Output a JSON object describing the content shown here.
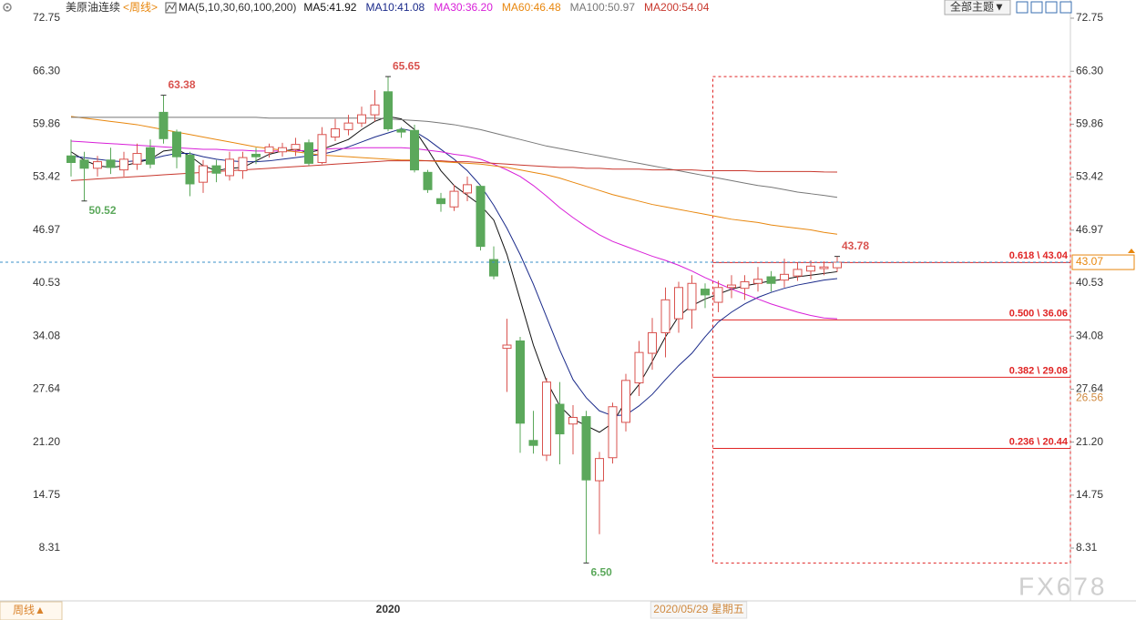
{
  "chart_data": {
    "type": "candlestick",
    "title": "美原油连续",
    "period_label": "<周线>",
    "ma_label": "MA(5,10,30,60,100,200)",
    "toolbar_button": "全部主题▼",
    "period_button": "周线▲",
    "crosshair_date": "2020/05/29 星期五",
    "watermark": "FX678",
    "categories": [
      null,
      null,
      null,
      null,
      null,
      null,
      null,
      null,
      null,
      null,
      null,
      null,
      null,
      null,
      null,
      null,
      null,
      null,
      null,
      null,
      null,
      null,
      null,
      null,
      "2020",
      null,
      null,
      null,
      null,
      null,
      null,
      null,
      null,
      null,
      null,
      null,
      null,
      null,
      null,
      null,
      null,
      null,
      null,
      null,
      null,
      null,
      null,
      null,
      null,
      null,
      null,
      null,
      null,
      null,
      null,
      null,
      null,
      null,
      null
    ],
    "candles": {
      "open": [
        56.0,
        55.5,
        54.5,
        55.5,
        54.3,
        55.0,
        57.0,
        61.3,
        58.9,
        56.1,
        52.8,
        54.8,
        53.6,
        54.2,
        56.2,
        56.4,
        56.5,
        56.8,
        57.6,
        55.2,
        58.3,
        59.2,
        60.0,
        61.0,
        63.8,
        59.2,
        59.1,
        54.0,
        50.8,
        49.8,
        51.5,
        52.3,
        43.4,
        32.6,
        33.5,
        21.4,
        19.6,
        25.8,
        23.4,
        24.3,
        16.5,
        19.3,
        23.6,
        28.4,
        32.0,
        34.5,
        36.2,
        37.3,
        39.8,
        38.2,
        40.0,
        39.9,
        40.5,
        41.3,
        40.9,
        41.4,
        42.0,
        42.3,
        42.4
      ],
      "high": [
        58.0,
        56.5,
        56.0,
        57.0,
        56.5,
        57.5,
        58.0,
        63.38,
        59.2,
        56.5,
        55.5,
        55.5,
        56.5,
        56.5,
        57.0,
        57.5,
        57.6,
        58.2,
        58.0,
        59.5,
        60.5,
        61.0,
        62.0,
        64.0,
        65.65,
        59.5,
        59.8,
        54.3,
        51.5,
        52.5,
        53.5,
        52.5,
        45.0,
        36.2,
        34.0,
        25.0,
        29.0,
        28.5,
        25.7,
        25.0,
        20.0,
        26.0,
        29.5,
        33.5,
        36.3,
        40.0,
        40.7,
        41.5,
        40.5,
        40.8,
        41.5,
        41.5,
        42.5,
        42.0,
        43.5,
        43.0,
        43.3,
        43.2,
        43.78
      ],
      "low": [
        53.5,
        50.52,
        53.5,
        53.8,
        53.5,
        54.3,
        54.5,
        57.5,
        54.5,
        51.1,
        51.5,
        52.8,
        53.0,
        53.2,
        55.0,
        55.8,
        55.9,
        56.0,
        54.8,
        55.0,
        57.8,
        58.5,
        59.5,
        60.2,
        59.0,
        58.2,
        54.0,
        51.5,
        49.2,
        49.3,
        50.5,
        44.5,
        41.0,
        27.3,
        19.9,
        19.8,
        18.9,
        18.5,
        19.7,
        6.5,
        10.0,
        18.6,
        22.5,
        26.8,
        30.0,
        31.5,
        34.5,
        35.0,
        37.5,
        37.0,
        38.7,
        38.5,
        39.5,
        39.5,
        40.0,
        40.8,
        41.0,
        41.5,
        41.9
      ],
      "close": [
        55.2,
        54.5,
        55.3,
        54.6,
        55.6,
        56.3,
        55.0,
        58.1,
        55.9,
        52.6,
        54.8,
        53.9,
        55.6,
        55.8,
        55.9,
        57.1,
        57.0,
        57.4,
        55.1,
        58.6,
        59.3,
        60.0,
        61.0,
        62.2,
        59.3,
        58.9,
        54.3,
        51.9,
        50.2,
        51.7,
        52.5,
        45.0,
        41.4,
        33.0,
        23.5,
        20.8,
        28.5,
        22.2,
        24.2,
        16.6,
        19.2,
        25.5,
        28.7,
        32.1,
        34.5,
        38.5,
        40.0,
        40.5,
        39.1,
        40.0,
        40.3,
        40.7,
        41.0,
        40.5,
        41.6,
        42.2,
        42.6,
        42.5,
        43.07
      ]
    },
    "up_color": "#d9534f",
    "down_color": "#5ba85b",
    "ma_series": [
      {
        "name": "MA5:41.92",
        "color": "#111111",
        "values": [
          56.5,
          55.5,
          54.8,
          54.6,
          54.8,
          55.2,
          55.6,
          56.6,
          56.8,
          56,
          54.8,
          54.2,
          54.5,
          54.6,
          55.4,
          56.2,
          56.6,
          56.8,
          56.4,
          56.8,
          57.4,
          58,
          59.2,
          60.2,
          60.8,
          60.5,
          59.2,
          56.8,
          54.2,
          52.4,
          51.2,
          50,
          48.2,
          44,
          38.5,
          33,
          28.6,
          25.6,
          24,
          23.2,
          22.4,
          23.5,
          26.2,
          28.2,
          31,
          34,
          36.5,
          37.8,
          38.6,
          39.2,
          39.8,
          40.2,
          40.5,
          40.8,
          41,
          41.3,
          41.5,
          41.7,
          41.92
        ]
      },
      {
        "name": "MA10:41.08",
        "color": "#1a2a8a",
        "values": [
          56,
          55.8,
          55.6,
          55.4,
          55.3,
          55.4,
          55.6,
          56,
          56.3,
          56.3,
          55.9,
          55.6,
          55.4,
          55.3,
          55.3,
          55.4,
          55.6,
          55.8,
          56,
          56.2,
          56.6,
          57.1,
          57.7,
          58.3,
          58.8,
          59.3,
          59,
          58,
          56.8,
          55.6,
          54.2,
          52.4,
          50,
          47.2,
          44,
          40.4,
          36.4,
          32.4,
          28.8,
          26.6,
          25,
          24.4,
          24.5,
          25.6,
          27,
          28.8,
          30.5,
          32,
          34,
          35.8,
          37,
          38,
          38.8,
          39.4,
          39.9,
          40.3,
          40.6,
          40.9,
          41.08
        ]
      },
      {
        "name": "MA30:36.20",
        "color": "#d81fd8",
        "values": [
          57.8,
          57.7,
          57.6,
          57.5,
          57.4,
          57.3,
          57.2,
          57.1,
          57,
          56.9,
          56.8,
          56.8,
          56.7,
          56.7,
          56.6,
          56.6,
          56.6,
          56.6,
          56.7,
          56.8,
          56.9,
          56.9,
          57,
          57,
          57,
          57,
          56.9,
          56.7,
          56.5,
          56.2,
          56,
          55.6,
          55,
          54.3,
          53.5,
          52.4,
          51.1,
          49.7,
          48.5,
          47.4,
          46.4,
          45.6,
          45,
          44.4,
          43.8,
          43.3,
          42.7,
          42,
          41.2,
          40.5,
          39.8,
          39.2,
          38.6,
          38,
          37.5,
          37,
          36.6,
          36.3,
          36.2
        ]
      },
      {
        "name": "MA60:46.48",
        "color": "#e8870e",
        "values": [
          60.8,
          60.6,
          60.4,
          60.2,
          60,
          59.8,
          59.5,
          59.2,
          58.9,
          58.6,
          58.3,
          58,
          57.7,
          57.4,
          57.1,
          56.9,
          56.7,
          56.5,
          56.3,
          56.1,
          56,
          55.9,
          55.8,
          55.7,
          55.6,
          55.5,
          55.5,
          55.4,
          55.3,
          55.2,
          55.1,
          55,
          54.8,
          54.6,
          54.3,
          54,
          53.7,
          53.3,
          52.8,
          52.3,
          51.8,
          51.3,
          50.9,
          50.5,
          50.1,
          49.8,
          49.5,
          49.2,
          48.9,
          48.6,
          48.3,
          48.1,
          47.9,
          47.6,
          47.4,
          47.2,
          47,
          46.7,
          46.48
        ]
      },
      {
        "name": "MA100:50.97",
        "color": "#777777",
        "values": [
          60.7,
          60.7,
          60.7,
          60.7,
          60.7,
          60.7,
          60.7,
          60.7,
          60.7,
          60.7,
          60.7,
          60.7,
          60.7,
          60.7,
          60.7,
          60.6,
          60.6,
          60.6,
          60.6,
          60.6,
          60.6,
          60.6,
          60.6,
          60.6,
          60.5,
          60.4,
          60.3,
          60.2,
          60,
          59.8,
          59.5,
          59.2,
          58.8,
          58.4,
          58,
          57.6,
          57.2,
          56.9,
          56.6,
          56.3,
          56,
          55.7,
          55.4,
          55.1,
          54.8,
          54.5,
          54.2,
          53.9,
          53.6,
          53.3,
          53,
          52.7,
          52.4,
          52.2,
          51.9,
          51.6,
          51.4,
          51.2,
          50.97
        ]
      },
      {
        "name": "MA200:54.04",
        "color": "#c8372d",
        "values": [
          53,
          53.1,
          53.2,
          53.3,
          53.4,
          53.5,
          53.6,
          53.7,
          53.8,
          53.9,
          54,
          54.1,
          54.2,
          54.3,
          54.4,
          54.5,
          54.6,
          54.7,
          54.8,
          54.9,
          55,
          55.1,
          55.2,
          55.3,
          55.4,
          55.4,
          55.4,
          55.4,
          55.4,
          55.3,
          55.3,
          55.2,
          55.1,
          55,
          54.9,
          54.8,
          54.7,
          54.6,
          54.6,
          54.5,
          54.5,
          54.4,
          54.4,
          54.4,
          54.3,
          54.3,
          54.3,
          54.3,
          54.2,
          54.2,
          54.2,
          54.2,
          54.1,
          54.1,
          54.1,
          54.1,
          54.1,
          54.05,
          54.04
        ]
      }
    ],
    "extreme_labels": [
      {
        "index": 7,
        "kind": "high",
        "value": 63.38,
        "label": "63.38"
      },
      {
        "index": 24,
        "kind": "high",
        "value": 65.65,
        "label": "65.65"
      },
      {
        "index": 1,
        "kind": "low",
        "value": 50.52,
        "label": "50.52"
      },
      {
        "index": 39,
        "kind": "low",
        "value": 6.5,
        "label": "6.50"
      },
      {
        "index": 58,
        "kind": "high",
        "value": 43.78,
        "label": "43.78"
      }
    ],
    "fib_range": [
      6.5,
      65.65
    ],
    "fib_start_index": 49,
    "fib_levels": [
      {
        "value": 43.04,
        "label": "0.618 \\ 43.04"
      },
      {
        "value": 36.06,
        "label": "0.500 \\ 36.06"
      },
      {
        "value": 29.08,
        "label": "0.382 \\ 29.08"
      },
      {
        "value": 20.44,
        "label": "0.236 \\ 20.44"
      }
    ],
    "fib_color": "#e02424",
    "last_price": 43.07,
    "marker_price": 26.56,
    "ylim": [
      2.0,
      73.6
    ],
    "yticks": [
      72.75,
      {
        "value": 66.3,
        "label": "66.30"
      },
      59.86,
      53.42,
      46.97,
      40.53,
      34.08,
      27.64,
      {
        "value": 21.2,
        "label": "21.20"
      },
      14.75,
      8.31
    ],
    "grid": false
  }
}
